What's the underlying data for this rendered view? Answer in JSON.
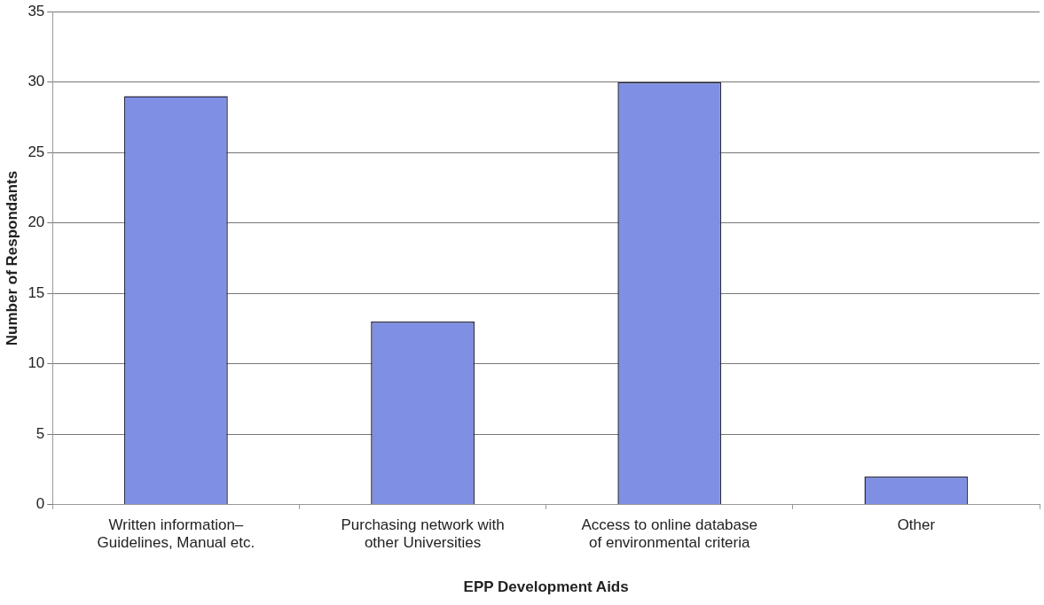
{
  "chart_data": {
    "type": "bar",
    "xlabel": "EPP Development Aids",
    "ylabel": "Number of Respondants",
    "categories": [
      "Written information–\nGuidelines, Manual etc.",
      "Purchasing network with\nother Universities",
      "Access to online database\nof environmental criteria",
      "Other"
    ],
    "values": [
      29,
      13,
      30,
      2
    ],
    "color": "#7f8fe3",
    "ylim": [
      0,
      35
    ],
    "yticks": [
      0,
      5,
      10,
      15,
      20,
      25,
      30,
      35
    ],
    "grid": "y",
    "legend": false
  }
}
